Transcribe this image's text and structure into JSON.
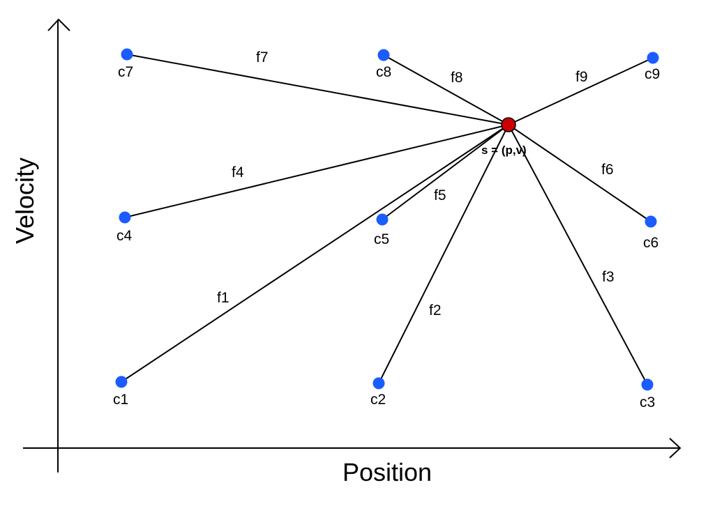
{
  "axes": {
    "x_label": "Position",
    "y_label": "Velocity"
  },
  "colors": {
    "node": "#1a5cff",
    "state": "#cc0000",
    "line": "#000000"
  },
  "state": {
    "label": "s = (p,v)"
  },
  "nodes": [
    {
      "id": "c1",
      "label": "c1"
    },
    {
      "id": "c2",
      "label": "c2"
    },
    {
      "id": "c3",
      "label": "c3"
    },
    {
      "id": "c4",
      "label": "c4"
    },
    {
      "id": "c5",
      "label": "c5"
    },
    {
      "id": "c6",
      "label": "c6"
    },
    {
      "id": "c7",
      "label": "c7"
    },
    {
      "id": "c8",
      "label": "c8"
    },
    {
      "id": "c9",
      "label": "c9"
    }
  ],
  "edges": [
    {
      "id": "f1",
      "label": "f1",
      "from": "c1"
    },
    {
      "id": "f2",
      "label": "f2",
      "from": "c2"
    },
    {
      "id": "f3",
      "label": "f3",
      "from": "c3"
    },
    {
      "id": "f4",
      "label": "f4",
      "from": "c4"
    },
    {
      "id": "f5",
      "label": "f5",
      "from": "c5"
    },
    {
      "id": "f6",
      "label": "f6",
      "from": "c6"
    },
    {
      "id": "f7",
      "label": "f7",
      "from": "c7"
    },
    {
      "id": "f8",
      "label": "f8",
      "from": "c8"
    },
    {
      "id": "f9",
      "label": "f9",
      "from": "c9"
    }
  ]
}
